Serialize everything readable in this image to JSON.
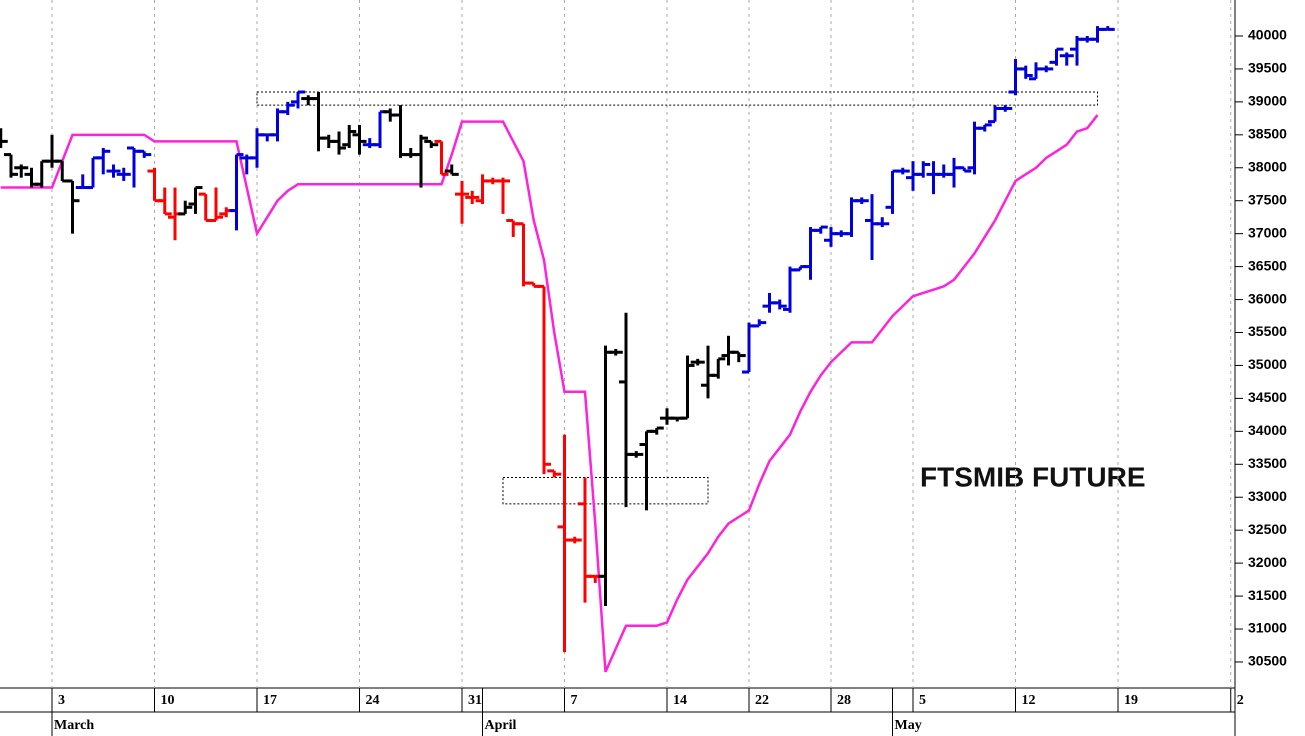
{
  "chart_data": {
    "type": "ohlc",
    "title": "FTSMIB FUTURE",
    "categories": [
      null,
      null,
      null,
      null,
      null,
      "3",
      null,
      null,
      null,
      null,
      null,
      null,
      null,
      null,
      null,
      "10",
      null,
      null,
      null,
      null,
      null,
      null,
      null,
      null,
      null,
      "17",
      null,
      null,
      null,
      null,
      null,
      null,
      null,
      null,
      null,
      "24",
      null,
      null,
      null,
      null,
      null,
      null,
      null,
      null,
      null,
      "31",
      null,
      null,
      null,
      null,
      null,
      null,
      null,
      null,
      null,
      "7",
      null,
      null,
      null,
      null,
      null,
      null,
      null,
      null,
      null,
      "14",
      null,
      null,
      null,
      null,
      null,
      null,
      null,
      "22",
      null,
      null,
      null,
      null,
      null,
      null,
      null,
      "28",
      null,
      null,
      null,
      null,
      null,
      null,
      null,
      "5",
      null,
      null,
      null,
      null,
      null,
      null,
      null,
      null,
      null,
      "12",
      null,
      null,
      null,
      null,
      null,
      null,
      null,
      null,
      null,
      "19",
      null,
      null,
      null,
      null,
      null,
      null,
      null,
      null,
      null,
      null,
      "2"
    ],
    "month_categories": [
      null,
      null,
      null,
      null,
      null,
      "March",
      null,
      null,
      null,
      null,
      null,
      null,
      null,
      null,
      null,
      null,
      null,
      null,
      null,
      null,
      null,
      null,
      null,
      null,
      null,
      null,
      null,
      null,
      null,
      null,
      null,
      null,
      null,
      null,
      null,
      null,
      null,
      null,
      null,
      null,
      null,
      null,
      null,
      null,
      null,
      null,
      null,
      "April",
      null,
      null,
      null,
      null,
      null,
      null,
      null,
      null,
      null,
      null,
      null,
      null,
      null,
      null,
      null,
      null,
      null,
      null,
      null,
      null,
      null,
      null,
      null,
      null,
      null,
      null,
      null,
      null,
      null,
      null,
      null,
      null,
      null,
      null,
      null,
      null,
      null,
      null,
      null,
      "May",
      null,
      null,
      null,
      null,
      null,
      null,
      null,
      null,
      null,
      null,
      null,
      null,
      null,
      null,
      null,
      null,
      null,
      null,
      null,
      null,
      null,
      null,
      null,
      null,
      null,
      null,
      null,
      null,
      null,
      null,
      null,
      null,
      null
    ],
    "open": [
      38550,
      38200,
      38000,
      37900,
      37750,
      38100,
      38100,
      37800,
      37700,
      37700,
      38150,
      37950,
      37900,
      38300,
      38250,
      37950,
      37500,
      37250,
      37300,
      37450,
      37600,
      37200,
      37300,
      37350,
      38150,
      38150,
      38500,
      38500,
      38850,
      39000,
      39050,
      39050,
      38450,
      38400,
      38350,
      38500,
      38350,
      38350,
      38850,
      38800,
      38200,
      38200,
      38400,
      38400,
      37950,
      37600,
      37550,
      37500,
      37800,
      37800,
      37200,
      37150,
      36250,
      36200,
      33400,
      32550,
      32350,
      32900,
      31800,
      31800,
      35200,
      34750,
      33650,
      33800,
      34000,
      34200,
      34200,
      34200,
      35050,
      34700,
      34850,
      35150,
      35200,
      34900,
      35600,
      35900,
      35950,
      35850,
      36450,
      36500,
      37050,
      36900,
      37000,
      37000,
      37500,
      37200,
      37150,
      37400,
      37950,
      37850,
      37900,
      37900,
      37900,
      37900,
      38000,
      38000,
      38600,
      38700,
      38900,
      39150,
      39500,
      39350,
      39500,
      39600,
      39700,
      39800,
      39950,
      39950,
      40100,
      null,
      null,
      null,
      null,
      null,
      null,
      null,
      null,
      null,
      null,
      null,
      null
    ],
    "high": [
      38600,
      38200,
      38050,
      38000,
      38100,
      38500,
      38100,
      37800,
      37900,
      38150,
      38300,
      38050,
      38000,
      38300,
      38250,
      38000,
      37700,
      37700,
      37500,
      37700,
      37600,
      37700,
      37400,
      38200,
      38200,
      38600,
      38500,
      38900,
      39000,
      39150,
      39100,
      39150,
      38500,
      38550,
      38650,
      38650,
      38450,
      38850,
      38900,
      38950,
      38300,
      38500,
      38400,
      38400,
      38050,
      37800,
      37650,
      37900,
      37850,
      37850,
      37200,
      37150,
      36250,
      36200,
      33400,
      33950,
      32400,
      33300,
      31800,
      35300,
      35250,
      35800,
      33700,
      34000,
      34050,
      34350,
      34200,
      35150,
      35100,
      35300,
      35100,
      35450,
      35200,
      35650,
      35700,
      36100,
      36000,
      36500,
      36500,
      37100,
      37100,
      37100,
      37050,
      37550,
      37550,
      37600,
      37250,
      37950,
      38000,
      38100,
      38100,
      38100,
      38050,
      38150,
      38000,
      38700,
      38650,
      38950,
      38950,
      39650,
      39550,
      39600,
      39550,
      39800,
      39750,
      40000,
      40000,
      40150,
      40150,
      null,
      null,
      null,
      null,
      null,
      null,
      null,
      null,
      null,
      null,
      null,
      null
    ],
    "low": [
      38300,
      37850,
      37850,
      37700,
      37700,
      38000,
      37800,
      37000,
      37700,
      37700,
      37900,
      37850,
      37800,
      37700,
      38150,
      37500,
      37300,
      36900,
      37300,
      37300,
      37200,
      37200,
      37250,
      37050,
      37900,
      38000,
      38400,
      38400,
      38800,
      38900,
      38950,
      38250,
      38300,
      38200,
      38300,
      38200,
      38300,
      38300,
      38700,
      38150,
      38150,
      37700,
      38300,
      37900,
      37900,
      37150,
      37450,
      37450,
      37750,
      37300,
      36950,
      36200,
      36200,
      33350,
      33300,
      30650,
      32300,
      31400,
      31700,
      31350,
      35150,
      32850,
      33600,
      32800,
      33950,
      34100,
      34150,
      34200,
      35000,
      34500,
      34800,
      35000,
      35050,
      34900,
      35600,
      35800,
      35850,
      35800,
      36450,
      36300,
      37000,
      36800,
      36950,
      36950,
      37450,
      36600,
      37100,
      37300,
      37900,
      37650,
      37850,
      37600,
      37850,
      37700,
      37950,
      37900,
      38550,
      38700,
      38850,
      39100,
      39350,
      39350,
      39450,
      39550,
      39550,
      39550,
      39900,
      39900,
      40100,
      null,
      null,
      null,
      null,
      null,
      null,
      null,
      null,
      null,
      null,
      null,
      null
    ],
    "close": [
      38400,
      37900,
      38000,
      37750,
      38100,
      38100,
      37800,
      37500,
      37700,
      38150,
      38250,
      37950,
      37900,
      38250,
      38200,
      37500,
      37300,
      37300,
      37400,
      37700,
      37200,
      37250,
      37350,
      38200,
      38150,
      38500,
      38500,
      38850,
      38950,
      39150,
      39050,
      38450,
      38400,
      38300,
      38550,
      38400,
      38350,
      38850,
      38800,
      38200,
      38200,
      38450,
      38350,
      37900,
      37900,
      37600,
      37550,
      37800,
      37800,
      37800,
      37150,
      36250,
      36200,
      33500,
      33350,
      32350,
      32350,
      31800,
      31800,
      35200,
      35200,
      33650,
      33650,
      34000,
      34050,
      34200,
      34200,
      35000,
      35050,
      34850,
      35100,
      35200,
      35150,
      35600,
      35650,
      35950,
      35900,
      36450,
      36500,
      37050,
      37100,
      37000,
      37000,
      37500,
      37500,
      37150,
      37150,
      37950,
      37950,
      37900,
      38050,
      37900,
      37900,
      38000,
      37950,
      38600,
      38650,
      38900,
      38900,
      39500,
      39400,
      39500,
      39500,
      39800,
      39700,
      39950,
      39950,
      40100,
      40100,
      null,
      null,
      null,
      null,
      null,
      null,
      null,
      null,
      null,
      null,
      null,
      null
    ],
    "colors": [
      "#000000",
      "#000000",
      "#000000",
      "#000000",
      "#000000",
      "#000000",
      "#000000",
      "#000000",
      "#0000dd",
      "#0000dd",
      "#0000dd",
      "#0000dd",
      "#0000dd",
      "#0000dd",
      "#0000dd",
      "#ff0000",
      "#ff0000",
      "#ff0000",
      "#000000",
      "#000000",
      "#ff0000",
      "#ff0000",
      "#ff0000",
      "#0000dd",
      "#0000dd",
      "#0000dd",
      "#0000dd",
      "#0000dd",
      "#0000dd",
      "#0000dd",
      "#000000",
      "#000000",
      "#000000",
      "#000000",
      "#000000",
      "#000000",
      "#0000dd",
      "#0000dd",
      "#000000",
      "#000000",
      "#000000",
      "#000000",
      "#000000",
      "#ff0000",
      "#000000",
      "#ff0000",
      "#ff0000",
      "#ff0000",
      "#ff0000",
      "#ff0000",
      "#ff0000",
      "#ff0000",
      "#ff0000",
      "#ff0000",
      "#ff0000",
      "#ff0000",
      "#ff0000",
      "#ff0000",
      "#ff0000",
      "#000000",
      "#000000",
      "#000000",
      "#000000",
      "#000000",
      "#000000",
      "#000000",
      "#000000",
      "#000000",
      "#000000",
      "#000000",
      "#000000",
      "#000000",
      "#000000",
      "#0000dd",
      "#0000dd",
      "#0000dd",
      "#0000dd",
      "#0000dd",
      "#0000dd",
      "#0000dd",
      "#0000dd",
      "#0000dd",
      "#0000dd",
      "#0000dd",
      "#0000dd",
      "#0000dd",
      "#0000dd",
      "#0000dd",
      "#0000dd",
      "#0000dd",
      "#0000dd",
      "#0000dd",
      "#0000dd",
      "#0000dd",
      "#0000dd",
      "#0000dd",
      "#0000dd",
      "#0000dd",
      "#0000dd",
      "#0000dd",
      "#0000dd",
      "#0000dd",
      "#0000dd",
      "#0000dd",
      "#0000dd",
      "#0000dd",
      "#0000dd",
      "#0000dd",
      "#0000dd",
      null,
      null,
      null,
      null,
      null,
      null,
      null,
      null,
      null,
      null,
      null,
      null
    ],
    "stop": [
      37700,
      37700,
      37700,
      37700,
      37700,
      37700,
      38100,
      38500,
      38500,
      38500,
      38500,
      38500,
      38500,
      38500,
      38500,
      38400,
      38400,
      38400,
      38400,
      38400,
      38400,
      38400,
      38400,
      38400,
      37700,
      37000,
      37250,
      37500,
      37650,
      37750,
      37750,
      37750,
      37750,
      37750,
      37750,
      37750,
      37750,
      37750,
      37750,
      37750,
      37750,
      37750,
      37750,
      37750,
      38200,
      38700,
      38700,
      38700,
      38700,
      38700,
      38400,
      38100,
      37200,
      36600,
      35500,
      34600,
      34600,
      34600,
      32600,
      30350,
      30700,
      31050,
      31050,
      31050,
      31050,
      31100,
      31450,
      31750,
      31950,
      32150,
      32400,
      32600,
      32700,
      32800,
      33200,
      33550,
      33750,
      33950,
      34300,
      34600,
      34850,
      35050,
      35200,
      35350,
      35350,
      35350,
      35550,
      35750,
      35900,
      36050,
      36100,
      36150,
      36200,
      36300,
      36500,
      36700,
      36950,
      37200,
      37500,
      37800,
      37900,
      38000,
      38150,
      38250,
      38350,
      38550,
      38600,
      38800,
      null,
      null,
      null,
      null,
      null,
      null,
      null,
      null,
      null,
      null,
      null,
      null,
      null
    ],
    "stop_color": "#ff22dd",
    "zones": [
      {
        "start": 25,
        "end": 107,
        "low": 38950,
        "high": 39150
      },
      {
        "start": 49,
        "end": 69,
        "low": 32900,
        "high": 33300
      }
    ],
    "ylim": [
      30105,
      40546
    ],
    "yticks": [
      30500,
      31000,
      31500,
      32000,
      32500,
      33000,
      33500,
      34000,
      34500,
      35000,
      35500,
      36000,
      36500,
      37000,
      37500,
      38000,
      38500,
      39000,
      39500,
      40000
    ],
    "grid": true
  }
}
